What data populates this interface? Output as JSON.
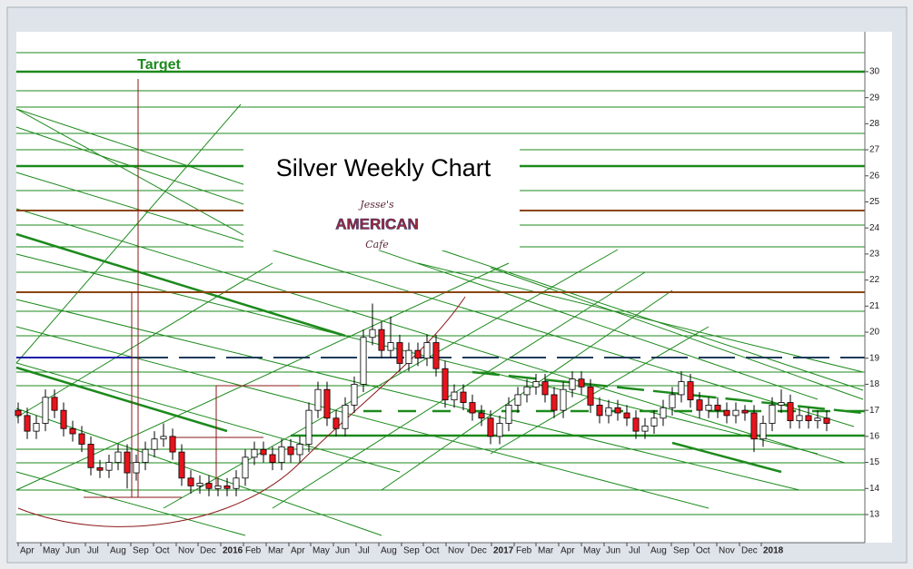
{
  "chart_data": {
    "type": "candlestick",
    "title": "Silver Weekly Chart",
    "annotation": "Target",
    "logo": [
      "Jesse's",
      "AMERICAN",
      "Cafe"
    ],
    "ylim": [
      11.92,
      31.53
    ],
    "yticks": [
      13,
      14,
      15,
      16,
      17,
      18,
      19,
      20,
      21,
      22,
      23,
      24,
      25,
      26,
      27,
      28,
      29,
      30
    ],
    "xlim": [
      -0.2,
      93.2
    ],
    "xticks": [
      {
        "value": 0,
        "label": "Apr"
      },
      {
        "value": 2.5,
        "label": "May"
      },
      {
        "value": 5,
        "label": "Jun"
      },
      {
        "value": 7.4,
        "label": "Jul"
      },
      {
        "value": 9.9,
        "label": "Aug"
      },
      {
        "value": 12.4,
        "label": "Sep"
      },
      {
        "value": 14.9,
        "label": "Oct"
      },
      {
        "value": 17.4,
        "label": "Nov"
      },
      {
        "value": 19.8,
        "label": "Dec"
      },
      {
        "value": 22.3,
        "label": "2016"
      },
      {
        "value": 24.8,
        "label": "Feb"
      },
      {
        "value": 27.3,
        "label": "Mar"
      },
      {
        "value": 29.8,
        "label": "Apr"
      },
      {
        "value": 32.2,
        "label": "May"
      },
      {
        "value": 34.7,
        "label": "Jun"
      },
      {
        "value": 37.2,
        "label": "Jul"
      },
      {
        "value": 39.7,
        "label": "Aug"
      },
      {
        "value": 42.2,
        "label": "Sep"
      },
      {
        "value": 44.6,
        "label": "Oct"
      },
      {
        "value": 47.1,
        "label": "Nov"
      },
      {
        "value": 49.6,
        "label": "Dec"
      },
      {
        "value": 52.1,
        "label": "2017"
      },
      {
        "value": 54.6,
        "label": "Feb"
      },
      {
        "value": 57.0,
        "label": "Mar"
      },
      {
        "value": 59.5,
        "label": "Apr"
      },
      {
        "value": 62.0,
        "label": "May"
      },
      {
        "value": 64.5,
        "label": "Jun"
      },
      {
        "value": 67.0,
        "label": "Jul"
      },
      {
        "value": 69.4,
        "label": "Aug"
      },
      {
        "value": 71.9,
        "label": "Sep"
      },
      {
        "value": 74.4,
        "label": "Oct"
      },
      {
        "value": 76.9,
        "label": "Nov"
      },
      {
        "value": 79.4,
        "label": "Dec"
      },
      {
        "value": 81.8,
        "label": "2018"
      }
    ],
    "up_color": "#ffffff",
    "down_color": "#e8141c",
    "x": [
      0,
      1,
      2,
      3,
      4,
      5,
      6,
      7,
      8,
      9,
      10,
      11,
      12,
      13,
      14,
      15,
      16,
      17,
      18,
      19,
      20,
      21,
      22,
      23,
      24,
      25,
      26,
      27,
      28,
      29,
      30,
      31,
      32,
      33,
      34,
      35,
      36,
      37,
      38,
      39,
      40,
      41,
      42,
      43,
      44,
      45,
      46,
      47,
      48,
      49,
      50,
      51,
      52,
      53,
      54,
      55,
      56,
      57,
      58,
      59,
      60,
      61,
      62,
      63,
      64,
      65,
      66,
      67,
      68,
      69,
      70,
      71,
      72,
      73,
      74,
      75,
      76,
      77,
      78,
      79,
      80,
      81,
      82,
      83,
      84,
      85,
      86,
      87,
      88,
      89
    ],
    "open": [
      17.0,
      16.8,
      16.2,
      16.5,
      17.5,
      17.0,
      16.3,
      16.1,
      15.7,
      14.8,
      14.7,
      15.0,
      15.4,
      14.6,
      15.0,
      15.5,
      15.9,
      16.0,
      15.4,
      14.4,
      14.1,
      14.2,
      14.0,
      14.1,
      14.0,
      14.4,
      15.2,
      15.5,
      15.3,
      15.0,
      15.6,
      15.3,
      15.7,
      17.0,
      17.8,
      16.7,
      16.3,
      17.2,
      18.0,
      19.8,
      20.1,
      19.3,
      19.6,
      18.8,
      19.3,
      19.0,
      19.6,
      18.6,
      17.4,
      17.7,
      17.3,
      16.9,
      16.7,
      16.0,
      16.5,
      17.2,
      17.6,
      17.9,
      18.1,
      17.6,
      17.0,
      17.8,
      18.2,
      17.9,
      17.2,
      16.8,
      17.1,
      16.9,
      16.7,
      16.2,
      16.4,
      16.7,
      17.1,
      17.6,
      18.1,
      17.4,
      17.0,
      17.2,
      17.0,
      16.8,
      17.0,
      16.9,
      15.9,
      16.5,
      17.2,
      17.3,
      16.6,
      16.8,
      16.6,
      16.7
    ],
    "high": [
      17.3,
      17.1,
      16.8,
      17.8,
      17.8,
      17.3,
      16.6,
      16.4,
      16.0,
      15.1,
      15.3,
      15.7,
      15.7,
      15.3,
      15.8,
      16.2,
      16.5,
      16.3,
      15.7,
      14.7,
      14.5,
      14.5,
      14.4,
      14.4,
      14.7,
      15.5,
      15.8,
      15.8,
      15.6,
      15.9,
      15.9,
      16.0,
      17.3,
      18.1,
      18.1,
      17.0,
      17.5,
      18.3,
      20.1,
      21.1,
      20.4,
      20.6,
      19.9,
      19.6,
      19.6,
      19.9,
      19.9,
      18.9,
      18.0,
      18.0,
      17.6,
      17.2,
      17.0,
      16.8,
      17.5,
      17.9,
      18.2,
      18.4,
      18.4,
      17.9,
      18.1,
      18.5,
      18.5,
      18.2,
      17.5,
      17.4,
      17.4,
      17.2,
      17.0,
      16.7,
      17.0,
      17.4,
      17.9,
      18.5,
      18.4,
      17.7,
      17.5,
      17.5,
      17.3,
      17.3,
      17.2,
      17.2,
      16.8,
      17.5,
      17.8,
      17.6,
      17.1,
      17.1,
      17.0,
      17.0
    ],
    "low": [
      16.5,
      15.9,
      15.9,
      16.2,
      16.7,
      16.0,
      15.8,
      15.4,
      14.5,
      14.4,
      14.4,
      14.7,
      14.0,
      14.3,
      14.7,
      15.2,
      15.6,
      15.1,
      14.1,
      13.8,
      13.8,
      13.7,
      13.7,
      13.7,
      13.7,
      14.1,
      14.9,
      15.0,
      14.7,
      14.7,
      15.0,
      15.0,
      15.4,
      16.7,
      16.4,
      16.0,
      16.0,
      16.9,
      17.7,
      19.5,
      19.0,
      19.0,
      18.5,
      18.5,
      18.7,
      18.7,
      18.3,
      17.1,
      17.1,
      17.0,
      16.6,
      16.4,
      15.7,
      15.7,
      16.2,
      16.9,
      17.3,
      17.6,
      17.3,
      16.7,
      16.7,
      17.5,
      17.6,
      16.9,
      16.5,
      16.5,
      16.6,
      16.4,
      15.9,
      15.9,
      16.1,
      16.4,
      16.8,
      17.3,
      17.1,
      16.7,
      16.7,
      16.7,
      16.5,
      16.5,
      16.6,
      15.4,
      15.6,
      16.2,
      16.9,
      16.3,
      16.3,
      16.3,
      16.3,
      16.2
    ],
    "close": [
      16.8,
      16.2,
      16.5,
      17.5,
      17.0,
      16.3,
      16.1,
      15.7,
      14.8,
      14.7,
      15.0,
      15.4,
      14.6,
      15.0,
      15.5,
      15.9,
      16.0,
      15.4,
      14.4,
      14.1,
      14.2,
      14.0,
      14.1,
      14.0,
      14.4,
      15.2,
      15.5,
      15.3,
      15.0,
      15.6,
      15.3,
      15.7,
      17.0,
      17.8,
      16.7,
      16.3,
      17.2,
      18.0,
      19.8,
      20.1,
      19.3,
      19.6,
      18.8,
      19.3,
      19.0,
      19.6,
      18.6,
      17.4,
      17.7,
      17.3,
      16.9,
      16.7,
      16.0,
      16.5,
      17.2,
      17.6,
      17.9,
      18.1,
      17.6,
      17.0,
      17.8,
      18.2,
      17.9,
      17.2,
      16.8,
      17.1,
      16.9,
      16.7,
      16.2,
      16.4,
      16.7,
      17.1,
      17.6,
      18.1,
      17.4,
      17.0,
      17.2,
      17.0,
      16.8,
      17.0,
      16.9,
      15.9,
      16.5,
      17.2,
      17.3,
      16.6,
      16.8,
      16.6,
      16.7,
      16.5
    ]
  }
}
